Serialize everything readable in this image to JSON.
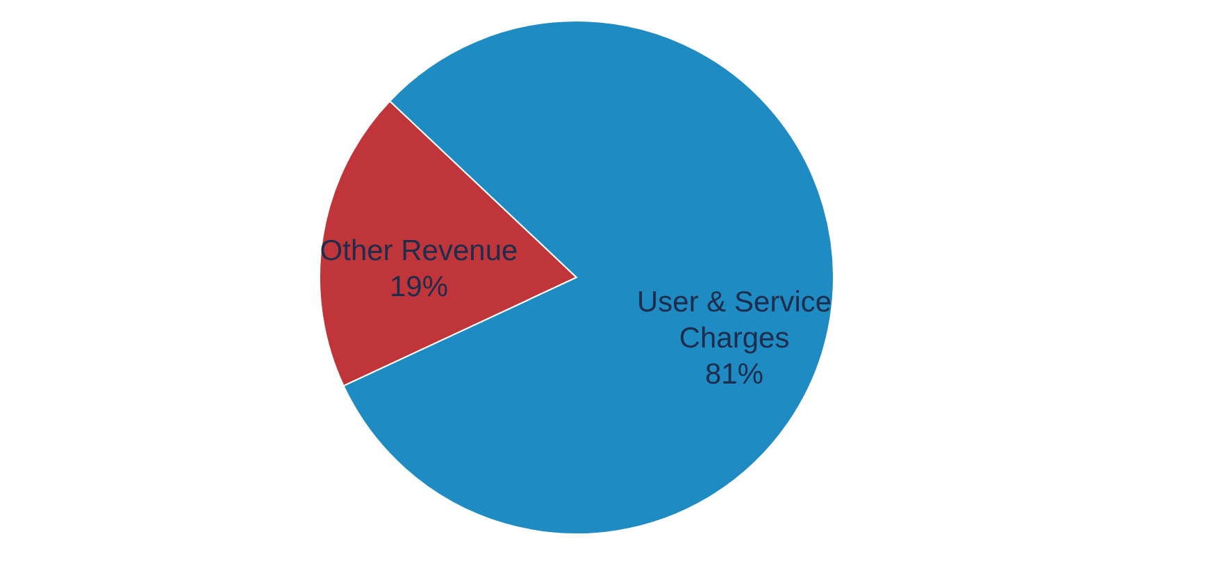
{
  "chart_data": {
    "type": "pie",
    "categories": [
      "Other Revenue",
      "User & Service Charges"
    ],
    "values": [
      19,
      81
    ],
    "colors": [
      "#c0353a",
      "#1e8bc3"
    ],
    "value_labels": [
      "19%",
      "81%"
    ],
    "legend": false
  }
}
